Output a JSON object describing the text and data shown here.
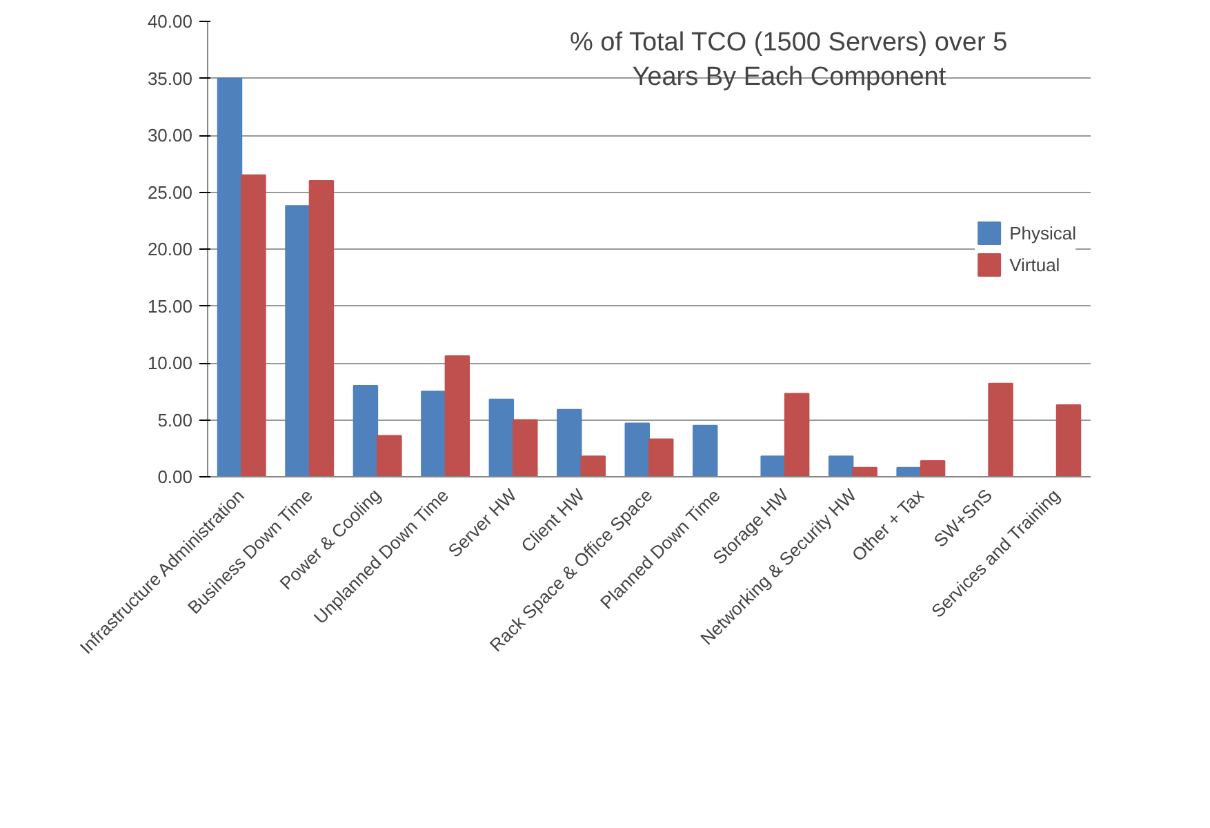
{
  "chart_data": {
    "type": "bar",
    "title": "% of Total TCO (1500 Servers) over 5 Years By Each Component",
    "categories": [
      "Infrastructure Administration",
      "Business Down Time",
      "Power & Cooling",
      "Unplanned Down Time",
      "Server HW",
      "Client HW",
      "Rack Space & Office Space",
      "Planned Down Time",
      "Storage HW",
      "Networking & Security HW",
      "Other + Tax",
      "SW+SnS",
      "Services and Training"
    ],
    "series": [
      {
        "name": "Physical",
        "color": "#4f81bd",
        "values": [
          35.0,
          23.8,
          8.0,
          7.5,
          6.8,
          5.9,
          4.7,
          4.5,
          1.8,
          1.8,
          0.8,
          null,
          null
        ]
      },
      {
        "name": "Virtual",
        "color": "#c0504d",
        "values": [
          26.5,
          26.0,
          3.6,
          10.6,
          5.0,
          1.8,
          3.3,
          null,
          7.3,
          0.8,
          1.4,
          8.2,
          6.3
        ]
      }
    ],
    "ylim": [
      0,
      40
    ],
    "yticks": [
      {
        "value": 0,
        "label": "0.00"
      },
      {
        "value": 5,
        "label": "5.00"
      },
      {
        "value": 10,
        "label": "10.00"
      },
      {
        "value": 15,
        "label": "15.00"
      },
      {
        "value": 20,
        "label": "20.00"
      },
      {
        "value": 25,
        "label": "25.00"
      },
      {
        "value": 30,
        "label": "30.00"
      },
      {
        "value": 35,
        "label": "35.00"
      },
      {
        "value": 40,
        "label": "40.00"
      }
    ],
    "grid": "y",
    "legend": "right"
  }
}
